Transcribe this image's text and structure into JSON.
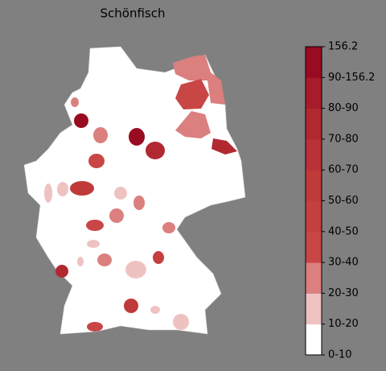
{
  "title": "Schönfisch",
  "colorbar": {
    "labels": [
      "0-10",
      "10-20",
      "20-30",
      "30-40",
      "40-50",
      "50-60",
      "60-70",
      "70-80",
      "80-90",
      "90-156.2",
      "156.2"
    ],
    "colors": [
      "#ffffff",
      "#efc2c2",
      "#db7f7f",
      "#c94646",
      "#c53f3f",
      "#c03a3a",
      "#ba3237",
      "#b22831",
      "#a71b2b",
      "#980b20"
    ]
  }
}
